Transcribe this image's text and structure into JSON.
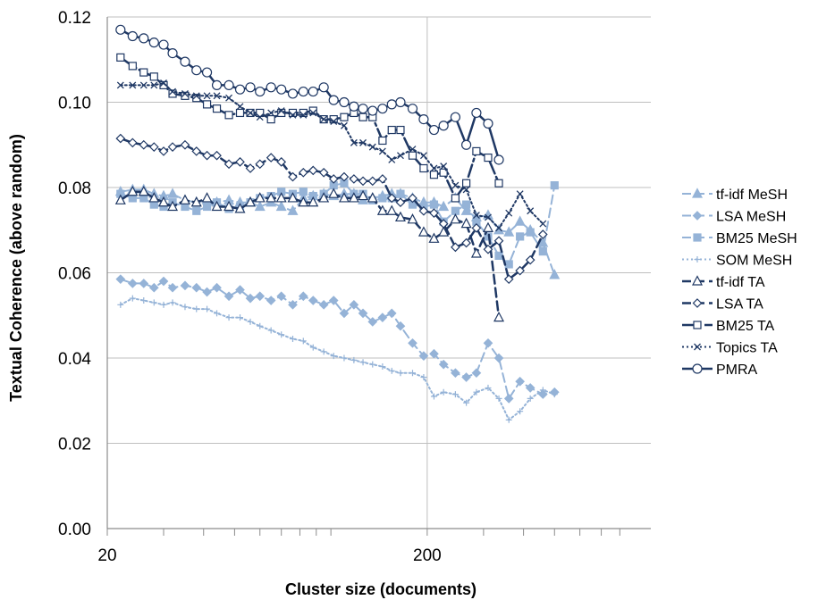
{
  "chart_data": {
    "type": "line",
    "xlabel": "Cluster size (documents)",
    "ylabel": "Textual Coherence (above random)",
    "x_scale": "log",
    "xlim": [
      20,
      1000
    ],
    "ylim": [
      0,
      0.12
    ],
    "x_ticks": [
      {
        "value": 20,
        "label": "20"
      },
      {
        "value": 200,
        "label": "200"
      }
    ],
    "x_minor_ticks": [
      30,
      40,
      50,
      60,
      70,
      80,
      90,
      100,
      300,
      400,
      500,
      600,
      700,
      800
    ],
    "x_gridlines": [
      200
    ],
    "y_ticks": [
      {
        "value": 0.0,
        "label": "0.00"
      },
      {
        "value": 0.02,
        "label": "0.02"
      },
      {
        "value": 0.04,
        "label": "0.04"
      },
      {
        "value": 0.06,
        "label": "0.06"
      },
      {
        "value": 0.08,
        "label": "0.08"
      },
      {
        "value": 0.1,
        "label": "0.10"
      },
      {
        "value": 0.12,
        "label": "0.12"
      }
    ],
    "grid": true,
    "legend_position": "right",
    "series": [
      {
        "name": "tf-idf MeSH",
        "color": "#95b3d7",
        "dash": "10,5",
        "width": 2,
        "marker": "triangle",
        "filled": true,
        "x": [
          22,
          24,
          26,
          28,
          30,
          32,
          35,
          38,
          41,
          44,
          48,
          52,
          56,
          60,
          65,
          70,
          76,
          82,
          88,
          95,
          102,
          110,
          118,
          126,
          135,
          145,
          155,
          165,
          180,
          195,
          210,
          225,
          245,
          265,
          285,
          310,
          335,
          360,
          390,
          420,
          460,
          500
        ],
        "y": [
          0.079,
          0.0795,
          0.0795,
          0.0785,
          0.078,
          0.0785,
          0.077,
          0.0765,
          0.077,
          0.0765,
          0.077,
          0.0765,
          0.0765,
          0.0755,
          0.0765,
          0.0755,
          0.0745,
          0.0775,
          0.078,
          0.0785,
          0.078,
          0.0785,
          0.0785,
          0.077,
          0.0775,
          0.078,
          0.0785,
          0.0785,
          0.0775,
          0.0765,
          0.0765,
          0.0755,
          0.0775,
          0.0745,
          0.073,
          0.0735,
          0.07,
          0.0695,
          0.072,
          0.07,
          0.067,
          0.0595
        ]
      },
      {
        "name": "LSA MeSH",
        "color": "#95b3d7",
        "dash": "10,5",
        "width": 2,
        "marker": "diamond",
        "filled": true,
        "x": [
          22,
          24,
          26,
          28,
          30,
          32,
          35,
          38,
          41,
          44,
          48,
          52,
          56,
          60,
          65,
          70,
          76,
          82,
          88,
          95,
          102,
          110,
          118,
          126,
          135,
          145,
          155,
          165,
          180,
          195,
          210,
          225,
          245,
          265,
          285,
          310,
          335,
          360,
          390,
          420,
          460,
          500
        ],
        "y": [
          0.0585,
          0.0575,
          0.0575,
          0.0565,
          0.058,
          0.0565,
          0.057,
          0.0565,
          0.0555,
          0.0565,
          0.0545,
          0.056,
          0.054,
          0.0545,
          0.0535,
          0.0545,
          0.0525,
          0.0545,
          0.0535,
          0.0525,
          0.0535,
          0.0505,
          0.0525,
          0.0505,
          0.0485,
          0.0495,
          0.0505,
          0.0475,
          0.0435,
          0.0405,
          0.041,
          0.0385,
          0.0365,
          0.0355,
          0.0365,
          0.0435,
          0.04,
          0.0305,
          0.0345,
          0.033,
          0.0315,
          0.032
        ]
      },
      {
        "name": "BM25 MeSH",
        "color": "#95b3d7",
        "dash": "10,5",
        "width": 2,
        "marker": "square",
        "filled": true,
        "x": [
          22,
          24,
          26,
          28,
          30,
          32,
          35,
          38,
          41,
          44,
          48,
          52,
          56,
          60,
          65,
          70,
          76,
          82,
          88,
          95,
          102,
          110,
          118,
          126,
          135,
          145,
          155,
          165,
          180,
          195,
          210,
          225,
          245,
          265,
          285,
          310,
          335,
          360,
          390,
          420,
          460,
          500
        ],
        "y": [
          0.0785,
          0.0775,
          0.0775,
          0.076,
          0.0755,
          0.0765,
          0.0755,
          0.0745,
          0.0755,
          0.0765,
          0.075,
          0.0755,
          0.0765,
          0.0775,
          0.078,
          0.079,
          0.0785,
          0.079,
          0.078,
          0.0785,
          0.0805,
          0.081,
          0.0785,
          0.0785,
          0.077,
          0.0775,
          0.0775,
          0.0785,
          0.076,
          0.0755,
          0.076,
          0.072,
          0.0745,
          0.076,
          0.072,
          0.0685,
          0.064,
          0.062,
          0.0685,
          0.0695,
          0.065,
          0.0805
        ]
      },
      {
        "name": "SOM MeSH",
        "color": "#95b3d7",
        "dash": "2,3",
        "width": 2,
        "marker": "plus",
        "filled": false,
        "x": [
          22,
          24,
          26,
          28,
          30,
          32,
          35,
          38,
          41,
          44,
          48,
          52,
          56,
          60,
          65,
          70,
          76,
          82,
          88,
          95,
          102,
          110,
          118,
          126,
          135,
          145,
          155,
          165,
          180,
          195,
          210,
          225,
          245,
          265,
          285,
          310,
          335,
          360,
          390,
          420,
          460,
          500
        ],
        "y": [
          0.0525,
          0.054,
          0.0535,
          0.053,
          0.0525,
          0.053,
          0.052,
          0.0515,
          0.0515,
          0.0505,
          0.0495,
          0.0495,
          0.0485,
          0.0475,
          0.0465,
          0.0455,
          0.0445,
          0.044,
          0.0425,
          0.0415,
          0.0405,
          0.04,
          0.0395,
          0.039,
          0.0385,
          0.038,
          0.037,
          0.0365,
          0.0365,
          0.0355,
          0.031,
          0.032,
          0.0315,
          0.0295,
          0.032,
          0.033,
          0.0305,
          0.0255,
          0.0275,
          0.0305,
          0.0325,
          0.0315
        ]
      },
      {
        "name": "tf-idf TA",
        "color": "#1f3864",
        "dash": "10,5",
        "width": 2.5,
        "marker": "triangle",
        "filled": false,
        "x": [
          22,
          24,
          26,
          28,
          30,
          32,
          35,
          38,
          41,
          44,
          48,
          52,
          56,
          60,
          65,
          70,
          76,
          82,
          88,
          95,
          102,
          110,
          118,
          126,
          135,
          145,
          155,
          165,
          180,
          195,
          210,
          225,
          245,
          265,
          285,
          310,
          335
        ],
        "y": [
          0.077,
          0.079,
          0.079,
          0.0775,
          0.0765,
          0.0755,
          0.077,
          0.0765,
          0.0775,
          0.0755,
          0.0755,
          0.075,
          0.0765,
          0.0775,
          0.0775,
          0.0775,
          0.0775,
          0.0765,
          0.0765,
          0.0775,
          0.0785,
          0.0775,
          0.0775,
          0.078,
          0.0775,
          0.0745,
          0.0745,
          0.073,
          0.0725,
          0.0695,
          0.068,
          0.0695,
          0.0725,
          0.0715,
          0.0645,
          0.0705,
          0.0495
        ]
      },
      {
        "name": "LSA TA",
        "color": "#1f3864",
        "dash": "10,5",
        "width": 2.5,
        "marker": "diamond",
        "filled": false,
        "x": [
          22,
          24,
          26,
          28,
          30,
          32,
          35,
          38,
          41,
          44,
          48,
          52,
          56,
          60,
          65,
          70,
          76,
          82,
          88,
          95,
          102,
          110,
          118,
          126,
          135,
          145,
          155,
          165,
          180,
          195,
          210,
          225,
          245,
          265,
          285,
          310,
          335,
          360,
          390,
          420,
          460
        ],
        "y": [
          0.0915,
          0.0905,
          0.09,
          0.0895,
          0.0885,
          0.0895,
          0.09,
          0.0885,
          0.0875,
          0.0875,
          0.0855,
          0.086,
          0.0845,
          0.0855,
          0.087,
          0.086,
          0.0825,
          0.0835,
          0.084,
          0.0835,
          0.082,
          0.0825,
          0.082,
          0.0815,
          0.0815,
          0.082,
          0.0775,
          0.0765,
          0.0775,
          0.0745,
          0.074,
          0.0715,
          0.066,
          0.067,
          0.0705,
          0.0655,
          0.0675,
          0.0585,
          0.0605,
          0.063,
          0.069
        ]
      },
      {
        "name": "BM25 TA",
        "color": "#1f3864",
        "dash": "14,4,3,4",
        "width": 2.5,
        "marker": "square",
        "filled": false,
        "x": [
          22,
          24,
          26,
          28,
          30,
          32,
          35,
          38,
          41,
          44,
          48,
          52,
          56,
          60,
          65,
          70,
          76,
          82,
          88,
          95,
          102,
          110,
          118,
          126,
          135,
          145,
          155,
          165,
          180,
          195,
          210,
          225,
          245,
          265,
          285,
          310,
          335
        ],
        "y": [
          0.1105,
          0.1085,
          0.107,
          0.106,
          0.104,
          0.102,
          0.1015,
          0.101,
          0.0995,
          0.0985,
          0.097,
          0.0975,
          0.0975,
          0.0975,
          0.096,
          0.0975,
          0.0975,
          0.0975,
          0.098,
          0.096,
          0.096,
          0.0965,
          0.0975,
          0.0965,
          0.0965,
          0.091,
          0.0935,
          0.0935,
          0.0875,
          0.0845,
          0.083,
          0.0835,
          0.0775,
          0.081,
          0.0885,
          0.087,
          0.081
        ]
      },
      {
        "name": "Topics TA",
        "color": "#1f3864",
        "dash": "2,3",
        "width": 2,
        "marker": "x",
        "filled": false,
        "x": [
          22,
          24,
          26,
          28,
          30,
          32,
          35,
          38,
          41,
          44,
          48,
          52,
          56,
          60,
          65,
          70,
          76,
          82,
          88,
          95,
          102,
          110,
          118,
          126,
          135,
          145,
          155,
          165,
          180,
          195,
          210,
          225,
          245,
          265,
          285,
          310,
          335,
          360,
          390,
          420,
          460
        ],
        "y": [
          0.104,
          0.104,
          0.104,
          0.104,
          0.1045,
          0.1025,
          0.102,
          0.1015,
          0.1015,
          0.1015,
          0.101,
          0.099,
          0.0975,
          0.0965,
          0.0975,
          0.098,
          0.097,
          0.097,
          0.0975,
          0.096,
          0.0955,
          0.0945,
          0.0905,
          0.0905,
          0.0895,
          0.0885,
          0.0865,
          0.0875,
          0.089,
          0.0875,
          0.0845,
          0.085,
          0.0805,
          0.0795,
          0.0735,
          0.073,
          0.0705,
          0.074,
          0.0785,
          0.0745,
          0.0715
        ]
      },
      {
        "name": "PMRA",
        "color": "#1f3864",
        "dash": "",
        "width": 2.5,
        "marker": "circle",
        "filled": false,
        "x": [
          22,
          24,
          26,
          28,
          30,
          32,
          35,
          38,
          41,
          44,
          48,
          52,
          56,
          60,
          65,
          70,
          76,
          82,
          88,
          95,
          102,
          110,
          118,
          126,
          135,
          145,
          155,
          165,
          180,
          195,
          210,
          225,
          245,
          265,
          285,
          310,
          335
        ],
        "y": [
          0.117,
          0.1155,
          0.115,
          0.114,
          0.1135,
          0.1115,
          0.1095,
          0.1075,
          0.107,
          0.104,
          0.104,
          0.103,
          0.1035,
          0.1025,
          0.1035,
          0.103,
          0.102,
          0.1025,
          0.1025,
          0.1035,
          0.1005,
          0.1,
          0.099,
          0.0985,
          0.098,
          0.0985,
          0.0995,
          0.1,
          0.0985,
          0.096,
          0.0935,
          0.0945,
          0.0965,
          0.09,
          0.0975,
          0.095,
          0.0865
        ]
      }
    ]
  }
}
